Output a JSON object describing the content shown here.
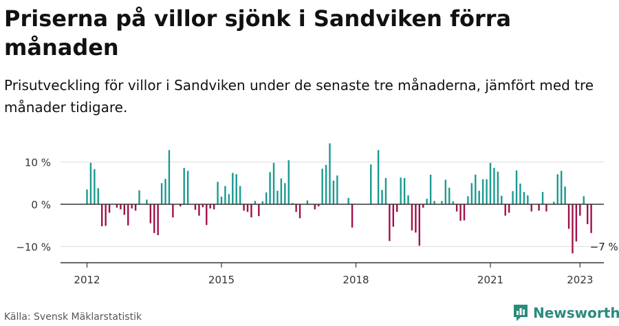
{
  "title": "Priserna på villor sjönk i Sandviken förra månaden",
  "subtitle": "Prisutveckling för villor i Sandviken under de senaste tre månaderna, jämfört med tre månader tidigare.",
  "source": "Källa: Svensk Mäklarstatistik",
  "brand": {
    "name": "Newsworthy",
    "color": "#2a8c7d"
  },
  "colors": {
    "positive": "#1a9a90",
    "negative": "#a0104a",
    "axis": "#333333",
    "grid": "#dddddd"
  },
  "chart_data": {
    "type": "bar",
    "title": "Priserna på villor sjönk i Sandviken förra månaden",
    "subtitle": "Prisutveckling för villor i Sandviken under de senaste tre månaderna, jämfört med tre månader tidigare.",
    "xlabel": "",
    "ylabel": "",
    "ylim": [
      -13,
      15
    ],
    "yticks": [
      {
        "value": 10,
        "label": "10 %"
      },
      {
        "value": 0,
        "label": "0 %"
      },
      {
        "value": -10,
        "label": "−10 %"
      }
    ],
    "xticks": [
      {
        "value": 2012,
        "label": "2012"
      },
      {
        "value": 2015,
        "label": "2015"
      },
      {
        "value": 2018,
        "label": "2018"
      },
      {
        "value": 2021,
        "label": "2021"
      },
      {
        "value": 2023,
        "label": "2023"
      }
    ],
    "start": "2012-01",
    "values": [
      3.5,
      9.8,
      8.3,
      3.8,
      -5.2,
      -5.1,
      -2.0,
      0,
      -0.8,
      -1.2,
      -2.5,
      -5.0,
      -1.0,
      -1.5,
      3.3,
      0,
      1.1,
      -4.5,
      -6.8,
      -7.3,
      5.0,
      6.0,
      12.8,
      -3.1,
      0,
      -0.5,
      8.6,
      7.9,
      0,
      -1.3,
      -2.7,
      -0.7,
      -4.9,
      -1.0,
      -1.2,
      5.3,
      1.8,
      4.3,
      2.4,
      7.4,
      7.1,
      4.3,
      -1.5,
      -1.8,
      -3.1,
      0.8,
      -2.8,
      0.7,
      2.8,
      7.6,
      9.8,
      3.2,
      6.1,
      5.0,
      10.4,
      0.3,
      -1.8,
      -3.3,
      0,
      0.9,
      0,
      -1.2,
      -0.5,
      8.4,
      9.3,
      14.4,
      5.6,
      6.8,
      0,
      0,
      1.5,
      -5.5,
      0,
      0,
      0,
      0,
      9.4,
      0,
      12.8,
      3.4,
      6.2,
      -8.7,
      -5.3,
      -1.8,
      6.3,
      6.2,
      2.1,
      -6.2,
      -6.7,
      -9.8,
      -0.8,
      1.3,
      7.0,
      0.8,
      0,
      0.8,
      5.8,
      3.9,
      0.7,
      -1.7,
      -3.9,
      -3.8,
      1.9,
      5.0,
      7.0,
      3.2,
      5.9,
      5.9,
      9.8,
      8.6,
      7.7,
      2.0,
      -2.7,
      -2.0,
      3.1,
      8.0,
      4.9,
      2.9,
      2.1,
      -1.7,
      0,
      -1.5,
      2.9,
      -1.7,
      0,
      0.6,
      7.1,
      7.9,
      4.2,
      -5.8,
      -11.6,
      -8.8,
      -2.7,
      1.9,
      -4.7,
      -6.8
    ],
    "annotations": [
      {
        "index": 135,
        "label": "−7 %"
      }
    ]
  }
}
